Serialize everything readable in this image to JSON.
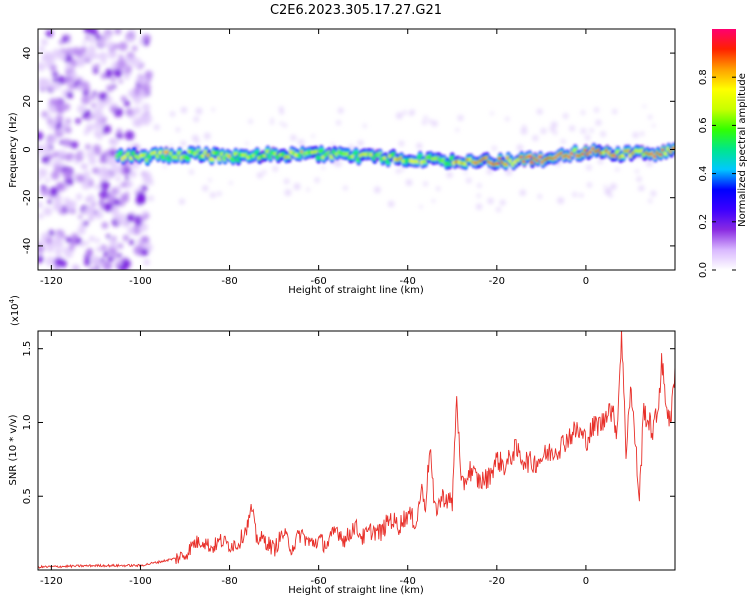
{
  "title": "C2E6.2023.305.17.27.G21",
  "chart_data": [
    {
      "type": "heatmap",
      "xlabel": "Height of straight line (km)",
      "ylabel": "Frequency (Hz)",
      "xlim": [
        -123,
        20
      ],
      "ylim": [
        -50,
        50
      ],
      "xticks": [
        "-120",
        "-100",
        "-80",
        "-60",
        "-40",
        "-20",
        "0"
      ],
      "yticks": [
        "-40",
        "-20",
        "0",
        "20",
        "40"
      ],
      "ridge": {
        "x": [
          -100,
          -90,
          -80,
          -70,
          -60,
          -50,
          -40,
          -30,
          -20,
          -10,
          0,
          10,
          19
        ],
        "freq": [
          -3,
          -2,
          -3,
          -2,
          -2,
          -3,
          -4,
          -5,
          -5,
          -4,
          -1,
          -2,
          -1
        ]
      },
      "colorbar": {
        "label": "Normalized spectral amplitude",
        "range": [
          0,
          1
        ],
        "ticks": [
          "0.0",
          "0.2",
          "0.4",
          "0.6",
          "0.8"
        ],
        "colormap": [
          "#ffffff",
          "#d9b8ff",
          "#8a2be2",
          "#3c00ff",
          "#0000ff",
          "#00c8ff",
          "#00e68c",
          "#32ff00",
          "#c8ff00",
          "#ffff00",
          "#ffa000",
          "#ff2000",
          "#ff0070"
        ]
      }
    },
    {
      "type": "line",
      "xlabel": "Height of straight line (km)",
      "ylabel": "SNR (10 * v/v)",
      "y_multiplier": "(x10",
      "y_multiplier_exp": "4",
      "y_multiplier_close": ")",
      "xlim": [
        -123,
        20
      ],
      "ylim": [
        0,
        1.62
      ],
      "xticks": [
        "-120",
        "-100",
        "-80",
        "-60",
        "-40",
        "-20",
        "0"
      ],
      "yticks": [
        "0.5",
        "1.0",
        "1.5"
      ],
      "line_color": "#e8302a",
      "series": [
        {
          "x": [
            -123,
            -110,
            -100,
            -95,
            -92,
            -90,
            -88,
            -86,
            -84,
            -82,
            -80,
            -78,
            -76,
            -75,
            -74,
            -72,
            -70,
            -68,
            -66,
            -64,
            -62,
            -60,
            -58,
            -56,
            -54,
            -52,
            -50,
            -48,
            -46,
            -44,
            -42,
            -40,
            -38,
            -37,
            -36,
            -35,
            -34,
            -32,
            -30,
            -29,
            -28,
            -26,
            -24,
            -22,
            -20,
            -18,
            -16,
            -14,
            -12,
            -10,
            -8,
            -6,
            -4,
            -2,
            0,
            2,
            4,
            5,
            6,
            7,
            8,
            9,
            10,
            11,
            12,
            13,
            14,
            15,
            16,
            17,
            18,
            19,
            20
          ],
          "y": [
            0.02,
            0.03,
            0.03,
            0.06,
            0.08,
            0.1,
            0.18,
            0.2,
            0.15,
            0.2,
            0.17,
            0.18,
            0.3,
            0.42,
            0.22,
            0.2,
            0.14,
            0.25,
            0.15,
            0.25,
            0.18,
            0.2,
            0.17,
            0.28,
            0.2,
            0.3,
            0.22,
            0.27,
            0.25,
            0.35,
            0.3,
            0.38,
            0.32,
            0.55,
            0.45,
            0.85,
            0.4,
            0.5,
            0.45,
            1.2,
            0.55,
            0.68,
            0.6,
            0.62,
            0.75,
            0.7,
            0.82,
            0.75,
            0.72,
            0.76,
            0.8,
            0.83,
            0.9,
            0.95,
            0.88,
            0.98,
            1.0,
            1.12,
            1.05,
            0.95,
            1.62,
            0.8,
            1.25,
            0.9,
            0.48,
            1.1,
            1.0,
            0.95,
            1.05,
            1.4,
            1.15,
            0.97,
            1.38
          ]
        }
      ]
    }
  ]
}
